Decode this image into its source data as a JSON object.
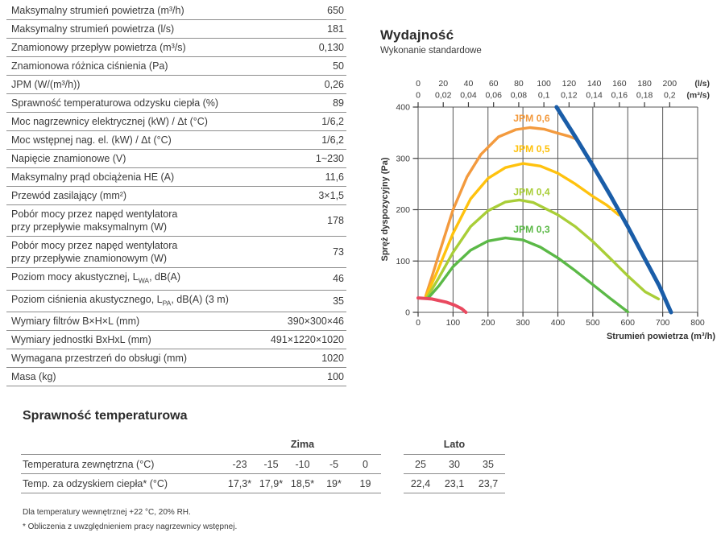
{
  "spec_table": {
    "rows": [
      {
        "label": "Maksymalny strumień powietrza (m³/h)",
        "value": "650"
      },
      {
        "label": "Maksymalny strumień powietrza (l/s)",
        "value": "181"
      },
      {
        "label": "Znamionowy przepływ powietrza (m³/s)",
        "value": "0,130"
      },
      {
        "label": "Znamionowa różnica ciśnienia (Pa)",
        "value": "50"
      },
      {
        "label": "JPM (W/(m³/h))",
        "value": "0,26"
      },
      {
        "label": "Sprawność temperaturowa odzysku ciepła (%)",
        "value": "89"
      },
      {
        "label": "Moc nagrzewnicy elektrycznej (kW) / Δt (°C)",
        "value": "1/6,2"
      },
      {
        "label": "Moc wstępnej nag. el. (kW) / Δt (°C)",
        "value": "1/6,2"
      },
      {
        "label": "Napięcie znamionowe (V)",
        "value": "1~230"
      },
      {
        "label": "Maksymalny prąd obciążenia HE (A)",
        "value": "11,6"
      },
      {
        "label": "Przewód zasilający (mm²)",
        "value": "3×1,5"
      },
      {
        "label": "Pobór mocy przez napęd wentylatora\nprzy przepływie maksymalnym (W)",
        "value": "178"
      },
      {
        "label": "Pobór mocy przez napęd wentylatora\nprzy przepływie znamionowym (W)",
        "value": "73"
      },
      {
        "label_parts": [
          [
            "t",
            "Poziom mocy akustycznej, L"
          ],
          [
            "sub",
            "WA"
          ],
          [
            "t",
            ", dB(A)"
          ]
        ],
        "value": "46"
      },
      {
        "label_parts": [
          [
            "t",
            "Poziom ciśnienia akustycznego, L"
          ],
          [
            "sub",
            "PA"
          ],
          [
            "t",
            ", dB(A) (3 m)"
          ]
        ],
        "value": "35"
      },
      {
        "label": "Wymiary filtrów B×H×L (mm)",
        "value": "390×300×46"
      },
      {
        "label": "Wymiary jednostki BxHxL (mm)",
        "value": "491×1220×1020"
      },
      {
        "label": "Wymagana przestrzeń do obsługi (mm)",
        "value": "1020"
      },
      {
        "label": "Masa (kg)",
        "value": "100"
      }
    ]
  },
  "chart_data": {
    "type": "line",
    "title": "Wydajność",
    "subtitle": "Wykonanie standardowe",
    "xlabel": "Strumień powietrza (m³/h)",
    "ylabel": "Spręż dyspozycyjny (Pa)",
    "xlim": [
      0,
      800
    ],
    "ylim": [
      0,
      400
    ],
    "x_ticks": [
      0,
      100,
      200,
      300,
      400,
      500,
      600,
      700,
      800
    ],
    "y_ticks": [
      0,
      100,
      200,
      300,
      400
    ],
    "grid": true,
    "grid_color": "#565656",
    "top_axis": {
      "unit_ls": "(l/s)",
      "unit_m3s": "(m³/s)",
      "ls_values": [
        0,
        20,
        40,
        60,
        80,
        100,
        120,
        140,
        160,
        180,
        200
      ],
      "m3s_labels": [
        "0",
        "0,02",
        "0,04",
        "0,06",
        "0,08",
        "0,1",
        "0,12",
        "0,14",
        "0,16",
        "0,18",
        "0,2"
      ]
    },
    "series": [
      {
        "id": "curve-jpm-0-6",
        "name": "JPM 0,6",
        "color": "#F39A3E",
        "width": 3.4,
        "label_at": [
          325,
          372
        ],
        "points": [
          [
            22,
            32
          ],
          [
            40,
            70
          ],
          [
            60,
            114
          ],
          [
            100,
            200
          ],
          [
            140,
            264
          ],
          [
            180,
            308
          ],
          [
            230,
            342
          ],
          [
            280,
            356
          ],
          [
            320,
            360
          ],
          [
            360,
            357
          ],
          [
            400,
            349
          ],
          [
            432,
            343
          ],
          [
            455,
            337
          ]
        ]
      },
      {
        "id": "curve-jpm-0-5",
        "name": "JPM 0,5",
        "color": "#FFC20E",
        "width": 3.4,
        "label_at": [
          325,
          312
        ],
        "points": [
          [
            22,
            30
          ],
          [
            50,
            72
          ],
          [
            100,
            154
          ],
          [
            150,
            221
          ],
          [
            200,
            261
          ],
          [
            250,
            282
          ],
          [
            300,
            290
          ],
          [
            350,
            285
          ],
          [
            400,
            271
          ],
          [
            450,
            250
          ],
          [
            500,
            226
          ],
          [
            540,
            209
          ],
          [
            574,
            190
          ]
        ]
      },
      {
        "id": "curve-jpm-0-4",
        "name": "JPM 0,4",
        "color": "#A9CE38",
        "width": 3.4,
        "label_at": [
          325,
          228
        ],
        "points": [
          [
            25,
            28
          ],
          [
            60,
            68
          ],
          [
            100,
            117
          ],
          [
            150,
            167
          ],
          [
            200,
            198
          ],
          [
            250,
            215
          ],
          [
            290,
            219
          ],
          [
            330,
            214
          ],
          [
            400,
            190
          ],
          [
            450,
            167
          ],
          [
            500,
            138
          ],
          [
            550,
            105
          ],
          [
            600,
            71
          ],
          [
            650,
            40
          ],
          [
            688,
            26
          ]
        ]
      },
      {
        "id": "curve-jpm-0-3",
        "name": "JPM 0,3",
        "color": "#5BB947",
        "width": 3.4,
        "label_at": [
          325,
          155
        ],
        "points": [
          [
            28,
            27
          ],
          [
            60,
            52
          ],
          [
            100,
            89
          ],
          [
            150,
            121
          ],
          [
            200,
            139
          ],
          [
            250,
            145
          ],
          [
            300,
            141
          ],
          [
            350,
            127
          ],
          [
            400,
            106
          ],
          [
            450,
            81
          ],
          [
            500,
            54
          ],
          [
            550,
            27
          ],
          [
            600,
            1
          ]
        ]
      },
      {
        "id": "limit-line-blue",
        "name": "",
        "color": "#1A5DA8",
        "width": 5,
        "points": [
          [
            396,
            400
          ],
          [
            450,
            342
          ],
          [
            500,
            286
          ],
          [
            550,
            228
          ],
          [
            600,
            167
          ],
          [
            650,
            103
          ],
          [
            690,
            52
          ],
          [
            724,
            0
          ]
        ]
      },
      {
        "id": "limit-curve-red",
        "name": "",
        "color": "#E9495F",
        "width": 4,
        "points": [
          [
            0,
            28
          ],
          [
            40,
            26
          ],
          [
            80,
            20
          ],
          [
            105,
            14
          ],
          [
            125,
            7
          ],
          [
            137,
            0
          ]
        ]
      }
    ]
  },
  "efficiency": {
    "heading": "Sprawność temperaturowa",
    "groups": [
      {
        "label": "Zima",
        "cols": 5
      },
      {
        "label": "Lato",
        "cols": 3
      }
    ],
    "rows": [
      {
        "label": "Temperatura zewnętrzna (°C)",
        "zima": [
          "-23",
          "-15",
          "-10",
          "-5",
          "0"
        ],
        "lato": [
          "25",
          "30",
          "35"
        ]
      },
      {
        "label": "Temp. za odzyskiem ciepła* (°C)",
        "zima": [
          "17,3*",
          "17,9*",
          "18,5*",
          "19*",
          "19"
        ],
        "lato": [
          "22,4",
          "23,1",
          "23,7"
        ]
      }
    ]
  },
  "footnotes": [
    "Dla temperatury wewnętrznej +22 °C, 20% RH.",
    "* Obliczenia z uwzględnieniem pracy nagrzewnicy wstępnej."
  ]
}
